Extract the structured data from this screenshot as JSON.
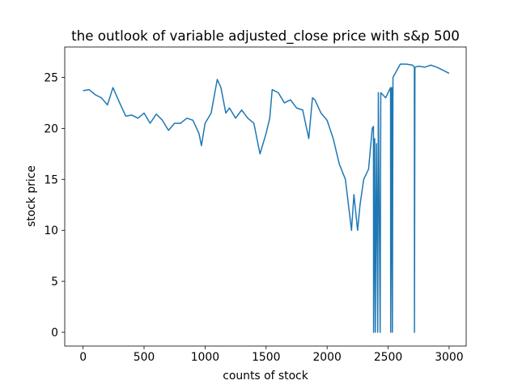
{
  "chart_data": {
    "type": "line",
    "title": "the outlook of variable adjusted_close price with s&p 500",
    "x_label": "counts of stock",
    "y_label": "stock price",
    "x": [
      0,
      50,
      100,
      150,
      200,
      245,
      300,
      350,
      400,
      450,
      500,
      550,
      600,
      650,
      700,
      750,
      800,
      850,
      900,
      950,
      970,
      1000,
      1050,
      1080,
      1100,
      1130,
      1170,
      1200,
      1250,
      1300,
      1350,
      1400,
      1450,
      1500,
      1530,
      1550,
      1600,
      1650,
      1700,
      1750,
      1800,
      1850,
      1880,
      1900,
      1950,
      2000,
      2050,
      2100,
      2150,
      2180,
      2200,
      2220,
      2250,
      2270,
      2300,
      2340,
      2370,
      2380,
      2381,
      2390,
      2395,
      2405,
      2415,
      2420,
      2435,
      2440,
      2480,
      2520,
      2521,
      2530,
      2535,
      2540,
      2600,
      2650,
      2700,
      2715,
      2716,
      2720,
      2750,
      2800,
      2850,
      2900,
      2950,
      3000
    ],
    "series": [
      {
        "color": "#1f77b4",
        "values": [
          23.7,
          23.8,
          23.3,
          23.0,
          22.3,
          24.0,
          22.5,
          21.2,
          21.3,
          21.0,
          21.5,
          20.5,
          21.4,
          20.8,
          19.8,
          20.5,
          20.5,
          21.0,
          20.8,
          19.5,
          18.3,
          20.5,
          21.5,
          23.5,
          24.8,
          24.0,
          21.5,
          22.0,
          21.0,
          21.8,
          21.0,
          20.5,
          17.5,
          19.5,
          21.0,
          23.8,
          23.5,
          22.5,
          22.8,
          22.0,
          21.8,
          19.0,
          23.0,
          22.8,
          21.5,
          20.8,
          19.0,
          16.5,
          15.0,
          12.0,
          10.0,
          13.5,
          10.0,
          12.5,
          15.0,
          16.0,
          20.0,
          20.2,
          0,
          19.0,
          0,
          18.5,
          0,
          23.5,
          0,
          23.5,
          23.0,
          24.0,
          0,
          24.0,
          0,
          25.0,
          26.3,
          26.3,
          26.2,
          26.0,
          0,
          26.0,
          26.1,
          26.0,
          26.2,
          26.0,
          25.7,
          25.4
        ]
      }
    ],
    "xlim": [
      -150,
      3140
    ],
    "ylim": [
      -1.35,
      27.98
    ],
    "xticks": [
      0,
      500,
      1000,
      1500,
      2000,
      2500,
      3000
    ],
    "yticks": [
      0,
      5,
      10,
      15,
      20,
      25
    ]
  }
}
